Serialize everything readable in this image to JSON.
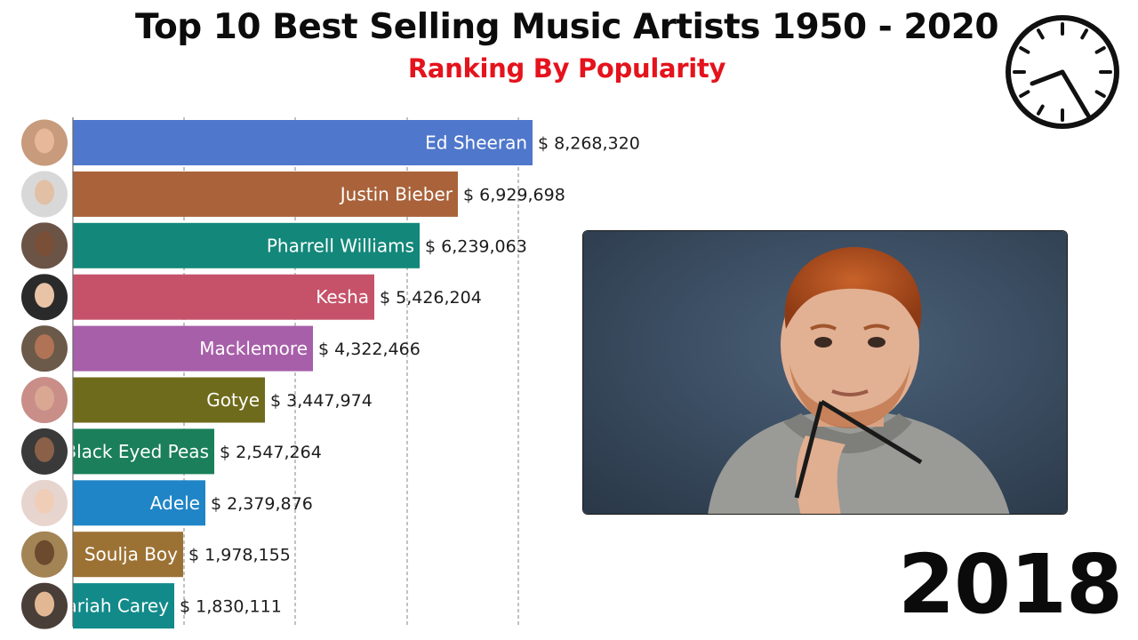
{
  "header": {
    "title": "Top 10 Best Selling Music Artists 1950 - 2020",
    "subtitle": "Ranking By Popularity"
  },
  "year": "2018",
  "clock": {
    "icon": "clock-icon"
  },
  "photo": {
    "icon": "artist-photo"
  },
  "colors": {
    "title": "#0c0c0c",
    "subtitle": "#e4131c",
    "grid": "#9a9a9a"
  },
  "chart_data": {
    "type": "bar",
    "orientation": "horizontal",
    "value_prefix": "$ ",
    "categories": [
      "Ed Sheeran",
      "Justin Bieber",
      "Pharrell Williams",
      "Kesha",
      "Macklemore",
      "Gotye",
      "Black Eyed Peas",
      "Adele",
      "Soulja Boy",
      "Mariah Carey"
    ],
    "values": [
      8268320,
      6929698,
      6239063,
      5426204,
      4322466,
      3447974,
      2547264,
      2379876,
      1978155,
      1830111
    ],
    "value_labels": [
      "$ 8,268,320",
      "$ 6,929,698",
      "$ 6,239,063",
      "$ 5,426,204",
      "$ 4,322,466",
      "$ 3,447,974",
      "$ 2,547,264",
      "$ 2,379,876",
      "$ 1,978,155",
      "$ 1,830,111"
    ],
    "colors": [
      "#4f77cb",
      "#a9623a",
      "#13877a",
      "#c6526a",
      "#a75fa9",
      "#6f6b1c",
      "#1a7f5a",
      "#1f85c7",
      "#9c7234",
      "#138a8a"
    ],
    "avatars": [
      {
        "bg": "#c79b7c",
        "face": "#e7b99a"
      },
      {
        "bg": "#d8d8d8",
        "face": "#e2c0a5"
      },
      {
        "bg": "#6b5346",
        "face": "#7a4f37"
      },
      {
        "bg": "#2a2a2a",
        "face": "#e8c3a6"
      },
      {
        "bg": "#6b5a4a",
        "face": "#b07355"
      },
      {
        "bg": "#c98e88",
        "face": "#d9a792"
      },
      {
        "bg": "#3a3a3a",
        "face": "#8a6148"
      },
      {
        "bg": "#e6d5ce",
        "face": "#f0cdb7"
      },
      {
        "bg": "#a38455",
        "face": "#6b4a2e"
      },
      {
        "bg": "#4a3e38",
        "face": "#e2b894"
      }
    ],
    "grid": "vertical dashed",
    "xlim": [
      0,
      10500000
    ]
  }
}
